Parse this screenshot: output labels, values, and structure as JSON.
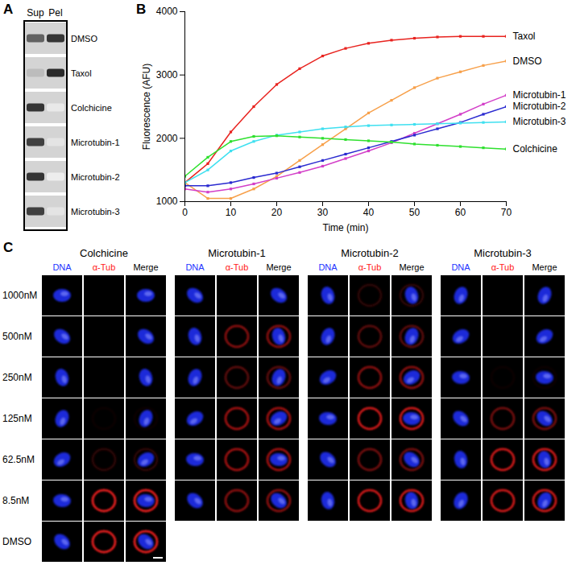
{
  "panel_labels": [
    "A",
    "B",
    "C"
  ],
  "blot": {
    "lanes": [
      "Sup",
      "Pel"
    ],
    "rows": [
      {
        "label": "DMSO",
        "intensity": [
          0.7,
          0.9
        ]
      },
      {
        "label": "Taxol",
        "intensity": [
          0.3,
          0.95
        ]
      },
      {
        "label": "Colchicine",
        "intensity": [
          0.9,
          0.1
        ]
      },
      {
        "label": "Microtubin-1",
        "intensity": [
          0.85,
          0.12
        ]
      },
      {
        "label": "Microtubin-2",
        "intensity": [
          0.9,
          0.08
        ]
      },
      {
        "label": "Microtubin-3",
        "intensity": [
          0.85,
          0.12
        ]
      }
    ]
  },
  "chart_data": {
    "type": "line",
    "x_label": "Time (min)",
    "y_label": "Fluorescence (AFU)",
    "x": [
      0,
      5,
      10,
      15,
      20,
      25,
      30,
      35,
      40,
      45,
      50,
      55,
      60,
      65,
      70
    ],
    "xlim": [
      0,
      70
    ],
    "xticks": [
      0,
      10,
      20,
      30,
      40,
      50,
      60,
      70
    ],
    "ylim": [
      1000,
      4000
    ],
    "yticks": [
      1000,
      2000,
      3000,
      4000
    ],
    "grid": false,
    "marker": "square",
    "series": [
      {
        "name": "Taxol",
        "color": "#e8231f",
        "values": [
          1300,
          1600,
          2100,
          2500,
          2850,
          3100,
          3300,
          3420,
          3500,
          3550,
          3580,
          3600,
          3610,
          3610,
          3610
        ]
      },
      {
        "name": "DMSO",
        "color": "#f7a04a",
        "values": [
          1300,
          1050,
          1050,
          1200,
          1400,
          1650,
          1900,
          2150,
          2400,
          2600,
          2800,
          2950,
          3050,
          3150,
          3220
        ]
      },
      {
        "name": "Microtubin-1",
        "color": "#d33fc8",
        "values": [
          1200,
          1150,
          1200,
          1280,
          1370,
          1460,
          1560,
          1680,
          1800,
          1930,
          2080,
          2230,
          2380,
          2540,
          2680
        ]
      },
      {
        "name": "Microtubin-2",
        "color": "#2a2ad0",
        "values": [
          1250,
          1250,
          1300,
          1380,
          1450,
          1550,
          1650,
          1750,
          1850,
          1950,
          2050,
          2150,
          2250,
          2380,
          2500
        ]
      },
      {
        "name": "Microtubin-3",
        "color": "#3fe0f0",
        "values": [
          1300,
          1500,
          1800,
          1950,
          2050,
          2100,
          2150,
          2180,
          2200,
          2210,
          2220,
          2230,
          2240,
          2250,
          2260
        ]
      },
      {
        "name": "Colchicine",
        "color": "#2ee02e",
        "values": [
          1400,
          1700,
          1950,
          2030,
          2040,
          2020,
          2000,
          1980,
          1960,
          1940,
          1910,
          1890,
          1870,
          1850,
          1830
        ]
      }
    ]
  },
  "micrographs": {
    "channels": [
      {
        "name": "DNA",
        "color": "#2233ff"
      },
      {
        "name": "α-Tub",
        "color": "#ff2020"
      },
      {
        "name": "Merge",
        "color": "#000000"
      }
    ],
    "concentrations": [
      "1000nM",
      "500nM",
      "250nM",
      "125nM",
      "62.5nM",
      "8.5nM",
      "DMSO"
    ],
    "compounds": [
      {
        "name": "Colchicine",
        "tubulin_signal": [
          0,
          0,
          0,
          0.05,
          0.2,
          1,
          1
        ]
      },
      {
        "name": "Microtubin-1",
        "tubulin_signal": [
          0,
          0.6,
          0.4,
          0.7,
          0.7,
          0.6,
          null
        ]
      },
      {
        "name": "Microtubin-2",
        "tubulin_signal": [
          0.2,
          0.4,
          0.6,
          0.9,
          0.5,
          0.9,
          null
        ]
      },
      {
        "name": "Microtubin-3",
        "tubulin_signal": [
          0,
          0,
          0.05,
          0.5,
          0.9,
          0.9,
          null
        ]
      }
    ]
  }
}
